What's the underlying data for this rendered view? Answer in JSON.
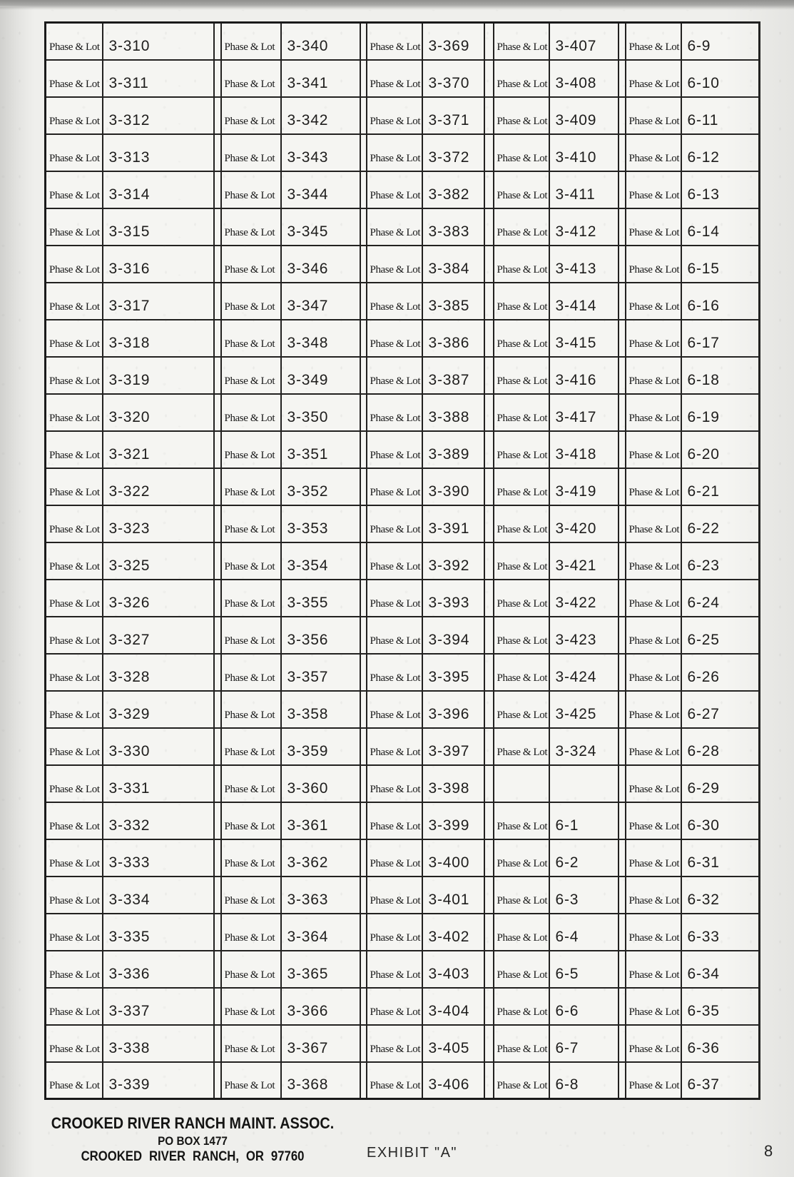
{
  "table": {
    "row_label": "Phase & Lot",
    "columns": 5,
    "rows": [
      [
        "3-310",
        "3-340",
        "3-369",
        "3-407",
        "6-9"
      ],
      [
        "3-311",
        "3-341",
        "3-370",
        "3-408",
        "6-10"
      ],
      [
        "3-312",
        "3-342",
        "3-371",
        "3-409",
        "6-11"
      ],
      [
        "3-313",
        "3-343",
        "3-372",
        "3-410",
        "6-12"
      ],
      [
        "3-314",
        "3-344",
        "3-382",
        "3-411",
        "6-13"
      ],
      [
        "3-315",
        "3-345",
        "3-383",
        "3-412",
        "6-14"
      ],
      [
        "3-316",
        "3-346",
        "3-384",
        "3-413",
        "6-15"
      ],
      [
        "3-317",
        "3-347",
        "3-385",
        "3-414",
        "6-16"
      ],
      [
        "3-318",
        "3-348",
        "3-386",
        "3-415",
        "6-17"
      ],
      [
        "3-319",
        "3-349",
        "3-387",
        "3-416",
        "6-18"
      ],
      [
        "3-320",
        "3-350",
        "3-388",
        "3-417",
        "6-19"
      ],
      [
        "3-321",
        "3-351",
        "3-389",
        "3-418",
        "6-20"
      ],
      [
        "3-322",
        "3-352",
        "3-390",
        "3-419",
        "6-21"
      ],
      [
        "3-323",
        "3-353",
        "3-391",
        "3-420",
        "6-22"
      ],
      [
        "3-325",
        "3-354",
        "3-392",
        "3-421",
        "6-23"
      ],
      [
        "3-326",
        "3-355",
        "3-393",
        "3-422",
        "6-24"
      ],
      [
        "3-327",
        "3-356",
        "3-394",
        "3-423",
        "6-25"
      ],
      [
        "3-328",
        "3-357",
        "3-395",
        "3-424",
        "6-26"
      ],
      [
        "3-329",
        "3-358",
        "3-396",
        "3-425",
        "6-27"
      ],
      [
        "3-330",
        "3-359",
        "3-397",
        "3-324",
        "6-28"
      ],
      [
        "3-331",
        "3-360",
        "3-398",
        null,
        "6-29"
      ],
      [
        "3-332",
        "3-361",
        "3-399",
        "6-1",
        "6-30"
      ],
      [
        "3-333",
        "3-362",
        "3-400",
        "6-2",
        "6-31"
      ],
      [
        "3-334",
        "3-363",
        "3-401",
        "6-3",
        "6-32"
      ],
      [
        "3-335",
        "3-364",
        "3-402",
        "6-4",
        "6-33"
      ],
      [
        "3-336",
        "3-365",
        "3-403",
        "6-5",
        "6-34"
      ],
      [
        "3-337",
        "3-366",
        "3-404",
        "6-6",
        "6-35"
      ],
      [
        "3-338",
        "3-367",
        "3-405",
        "6-7",
        "6-36"
      ],
      [
        "3-339",
        "3-368",
        "3-406",
        "6-8",
        "6-37"
      ]
    ]
  },
  "footer": {
    "org_name": "CROOKED RIVER RANCH MAINT. ASSOC.",
    "po_box": "PO BOX 1477",
    "city_state_zip": "CROOKED RIVER RANCH, OR 97760",
    "exhibit_label": "EXHIBIT \"A\"",
    "page_number": "8"
  },
  "colors": {
    "ink": "#222120",
    "paper": "#efefec"
  }
}
